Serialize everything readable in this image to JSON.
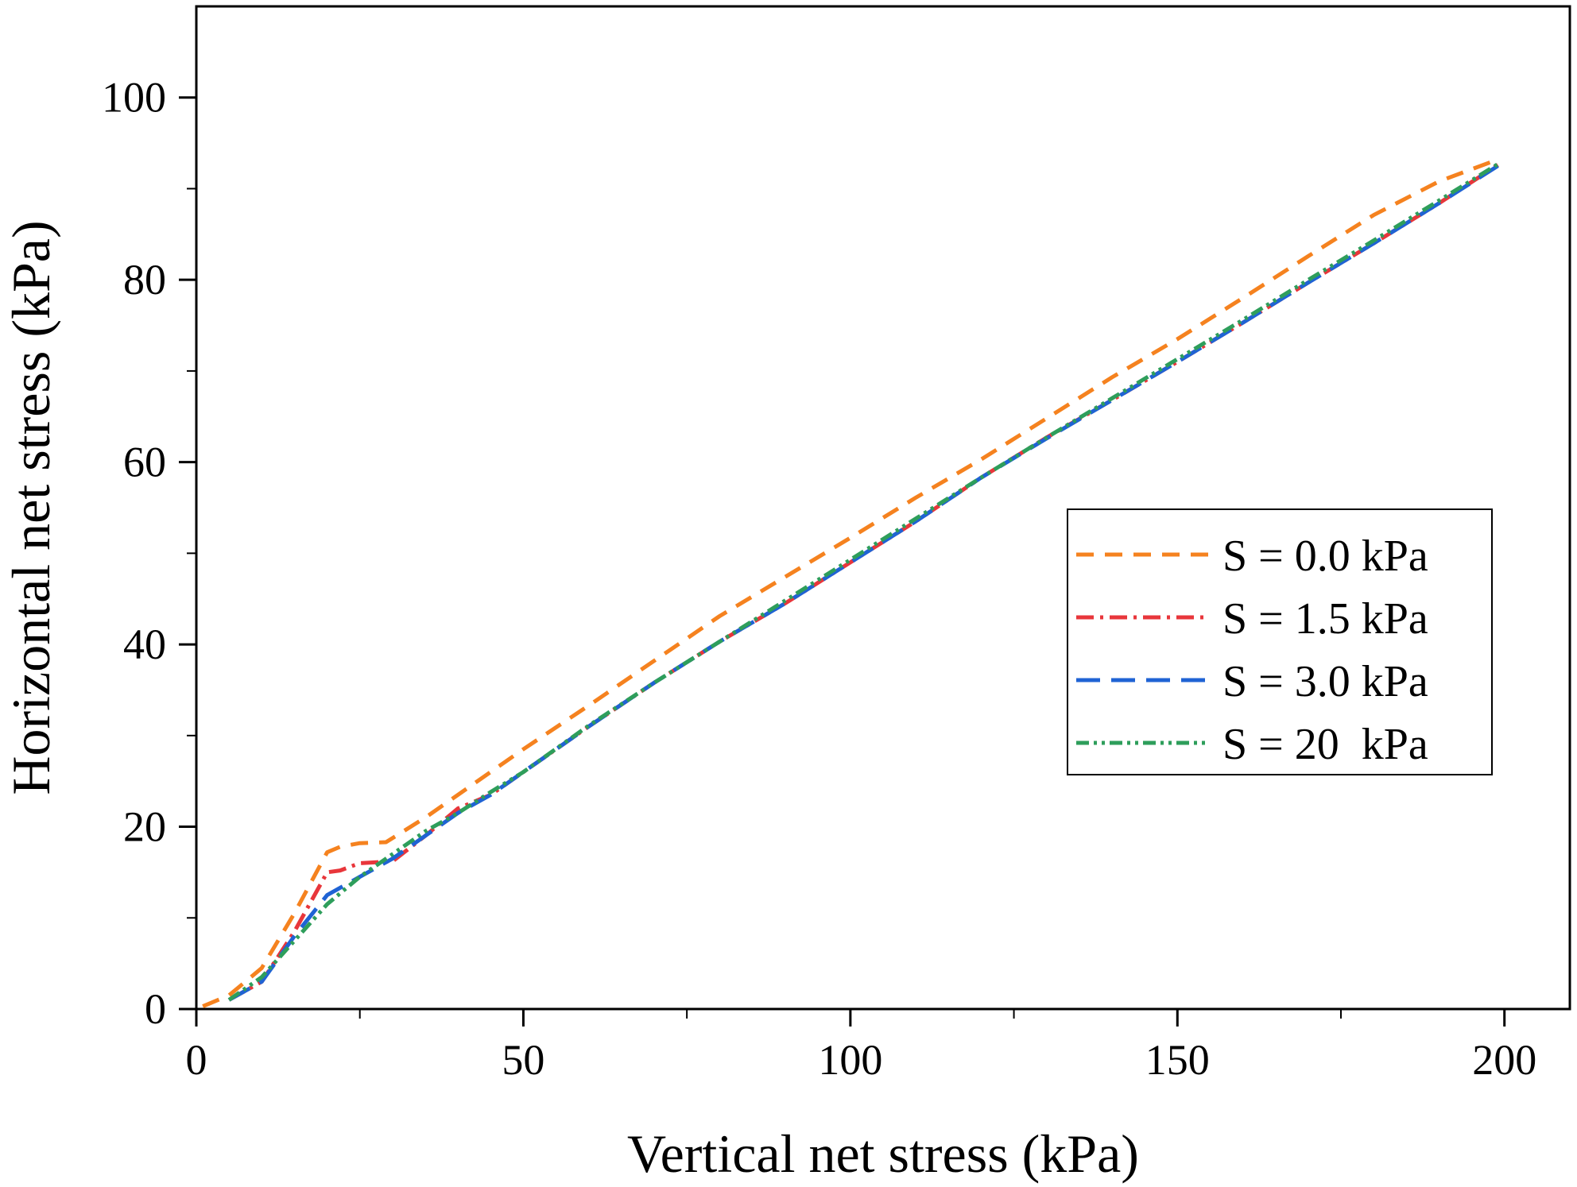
{
  "chart_data": {
    "type": "line",
    "xlabel": "Vertical net stress (kPa)",
    "ylabel": "Horizontal net stress (kPa)",
    "xlim": [
      0,
      210
    ],
    "ylim": [
      0,
      110
    ],
    "xticks": [
      0,
      50,
      100,
      150,
      200
    ],
    "xtick_labels": [
      "0",
      "50",
      "100",
      "150",
      "200"
    ],
    "yticks": [
      0,
      20,
      40,
      60,
      80,
      100
    ],
    "ytick_labels": [
      "0",
      "20",
      "40",
      "60",
      "80",
      "100"
    ],
    "grid": false,
    "legend_position": "center-right",
    "series": [
      {
        "name": "S = 0.0 kPa",
        "color": "#F5821F",
        "dash": "dash",
        "x": [
          1,
          5,
          10,
          15,
          20,
          22,
          25,
          29,
          35,
          40,
          50,
          60,
          70,
          80,
          90,
          100,
          110,
          120,
          130,
          140,
          150,
          160,
          170,
          180,
          190,
          199
        ],
        "y": [
          0.3,
          1.5,
          4.5,
          10.5,
          17.2,
          17.8,
          18.2,
          18.3,
          21,
          23.5,
          28.5,
          33.3,
          38.2,
          43.1,
          47.4,
          51.7,
          56.1,
          60.3,
          64.8,
          69.3,
          73.5,
          78,
          82.6,
          87.1,
          90.8,
          93.2
        ]
      },
      {
        "name": "S = 1.5 kPa",
        "color": "#E8363B",
        "dash": "dashdot",
        "x": [
          5,
          10,
          15,
          20,
          22,
          25,
          30,
          35,
          40,
          45,
          50,
          60,
          70,
          80,
          90,
          100,
          110,
          120,
          130,
          140,
          150,
          160,
          170,
          180,
          190,
          199
        ],
        "y": [
          1,
          3,
          8.5,
          15,
          15.2,
          16,
          16.2,
          19,
          22,
          23.5,
          26,
          31,
          35.8,
          40.3,
          44.5,
          49,
          53.5,
          58.3,
          62.7,
          66.8,
          71,
          75.3,
          79.7,
          84,
          88.4,
          92.6
        ]
      },
      {
        "name": "S = 3.0 kPa",
        "color": "#1F63D4",
        "dash": "longdash",
        "x": [
          5,
          10,
          15,
          20,
          25,
          30,
          35,
          40,
          45,
          50,
          60,
          70,
          80,
          90,
          100,
          110,
          120,
          130,
          140,
          150,
          160,
          170,
          180,
          190,
          199
        ],
        "y": [
          1,
          3,
          8,
          12.5,
          14.5,
          16.5,
          19,
          21.5,
          23.5,
          26,
          31,
          35.8,
          40.3,
          44.5,
          49,
          53.5,
          58.3,
          62.6,
          66.8,
          71,
          75.3,
          79.7,
          84,
          88.4,
          92.5
        ]
      },
      {
        "name": "S = 20  kPa",
        "color": "#2E9E5B",
        "dash": "dashdotdot",
        "x": [
          5,
          10,
          15,
          20,
          25,
          30,
          35,
          40,
          45,
          50,
          60,
          70,
          80,
          90,
          100,
          110,
          120,
          130,
          140,
          150,
          160,
          170,
          180,
          190,
          199
        ],
        "y": [
          1,
          3.5,
          7.5,
          11.5,
          14.5,
          17,
          19.5,
          21.5,
          23.8,
          26,
          31.1,
          35.8,
          40.3,
          44.8,
          49.3,
          53.8,
          58.3,
          62.7,
          67,
          71.3,
          75.6,
          80,
          84.3,
          88.7,
          92.7
        ]
      }
    ]
  }
}
